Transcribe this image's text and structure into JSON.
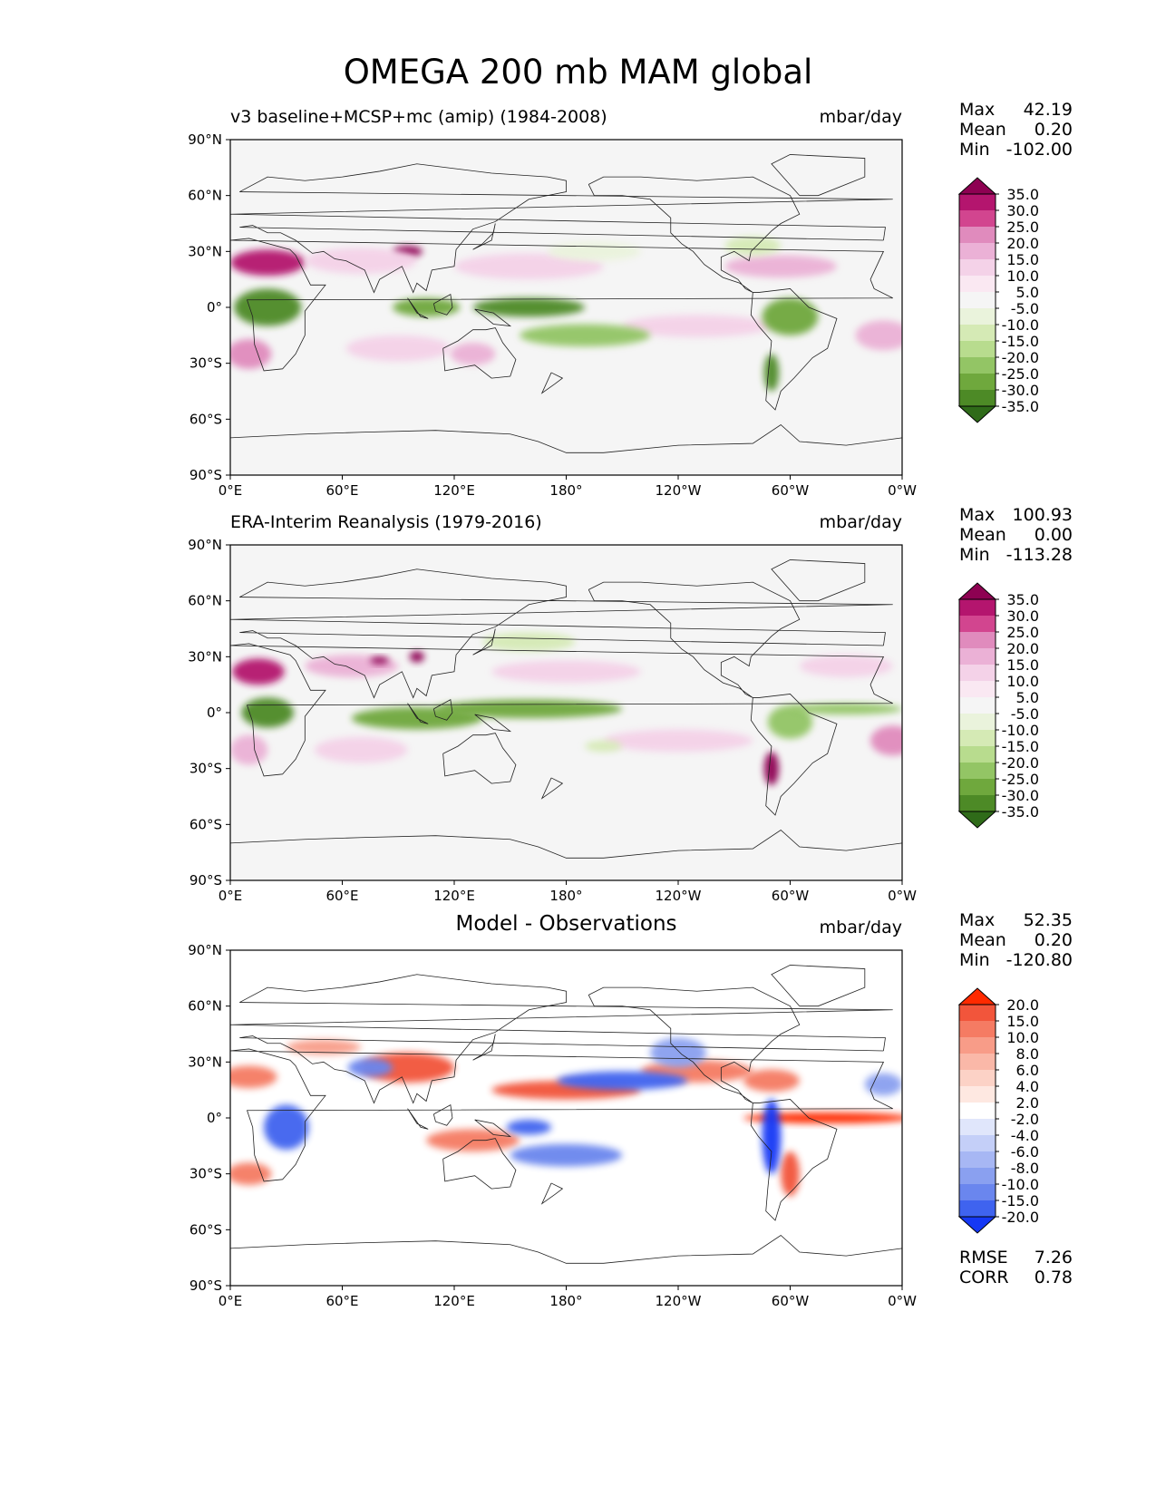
{
  "title": "OMEGA 200 mb MAM global",
  "chart_data": [
    {
      "type": "contour_map",
      "panel_title": "v3 baseline+MCSP+mc (amip) (1984-2008)",
      "units": "mbar/day",
      "stats": {
        "max_label": "Max",
        "max": "42.19",
        "mean_label": "Mean",
        "mean": "0.20",
        "min_label": "Min",
        "min": "-102.00"
      },
      "colorbar": {
        "ticks": [
          "35.0",
          "30.0",
          "25.0",
          "20.0",
          "15.0",
          "10.0",
          "5.0",
          "-5.0",
          "-10.0",
          "-15.0",
          "-20.0",
          "-25.0",
          "-30.0",
          "-35.0"
        ],
        "colors": [
          "#8e0152",
          "#b4156e",
          "#d2458f",
          "#e08bbd",
          "#ebb1d6",
          "#f4d2e8",
          "#fae8f2",
          "#f5f5f5",
          "#eaf3dc",
          "#d5eab5",
          "#b8dc8e",
          "#93c565",
          "#6fa83d",
          "#4d8a26",
          "#2f6b19"
        ]
      },
      "x_ticks": [
        "0°E",
        "60°E",
        "120°E",
        "180°",
        "120°W",
        "60°W",
        "0°W"
      ],
      "y_ticks": [
        "90°N",
        "60°N",
        "30°N",
        "0°",
        "30°S",
        "60°S",
        "90°S"
      ],
      "xlim": [
        0,
        360
      ],
      "ylim": [
        -90,
        90
      ],
      "features": [
        {
          "lon": 20,
          "lat": 24,
          "rx": 20,
          "ry": 7,
          "value": 32
        },
        {
          "lon": 95,
          "lat": 30,
          "rx": 8,
          "ry": 3,
          "value": 38
        },
        {
          "lon": 70,
          "lat": 25,
          "rx": 30,
          "ry": 7,
          "value": 12
        },
        {
          "lon": 160,
          "lat": 22,
          "rx": 40,
          "ry": 7,
          "value": 14
        },
        {
          "lon": 295,
          "lat": 22,
          "rx": 30,
          "ry": 6,
          "value": 18
        },
        {
          "lon": 10,
          "lat": -25,
          "rx": 12,
          "ry": 8,
          "value": 20
        },
        {
          "lon": 90,
          "lat": -22,
          "rx": 28,
          "ry": 7,
          "value": 12
        },
        {
          "lon": 130,
          "lat": -25,
          "rx": 12,
          "ry": 6,
          "value": 16
        },
        {
          "lon": 250,
          "lat": -10,
          "rx": 40,
          "ry": 6,
          "value": 14
        },
        {
          "lon": 350,
          "lat": -15,
          "rx": 15,
          "ry": 8,
          "value": 18
        },
        {
          "lon": 20,
          "lat": 0,
          "rx": 18,
          "ry": 10,
          "value": -34
        },
        {
          "lon": 105,
          "lat": 0,
          "rx": 18,
          "ry": 5,
          "value": -30
        },
        {
          "lon": 160,
          "lat": 0,
          "rx": 30,
          "ry": 5,
          "value": -33
        },
        {
          "lon": 190,
          "lat": -15,
          "rx": 35,
          "ry": 6,
          "value": -25
        },
        {
          "lon": 300,
          "lat": -5,
          "rx": 15,
          "ry": 10,
          "value": -30
        },
        {
          "lon": 290,
          "lat": -35,
          "rx": 4,
          "ry": 10,
          "value": -32
        },
        {
          "lon": 195,
          "lat": 30,
          "rx": 25,
          "ry": 5,
          "value": -10
        },
        {
          "lon": 280,
          "lat": 33,
          "rx": 15,
          "ry": 5,
          "value": -12
        }
      ]
    },
    {
      "type": "contour_map",
      "panel_title": "ERA-Interim Reanalysis (1979-2016)",
      "units": "mbar/day",
      "stats": {
        "max_label": "Max",
        "max": "100.93",
        "mean_label": "Mean",
        "mean": "0.00",
        "min_label": "Min",
        "min": "-113.28"
      },
      "colorbar": {
        "ticks": [
          "35.0",
          "30.0",
          "25.0",
          "20.0",
          "15.0",
          "10.0",
          "5.0",
          "-5.0",
          "-10.0",
          "-15.0",
          "-20.0",
          "-25.0",
          "-30.0",
          "-35.0"
        ],
        "colors": [
          "#8e0152",
          "#b4156e",
          "#d2458f",
          "#e08bbd",
          "#ebb1d6",
          "#f4d2e8",
          "#fae8f2",
          "#f5f5f5",
          "#eaf3dc",
          "#d5eab5",
          "#b8dc8e",
          "#93c565",
          "#6fa83d",
          "#4d8a26",
          "#2f6b19"
        ]
      },
      "x_ticks": [
        "0°E",
        "60°E",
        "120°E",
        "180°",
        "120°W",
        "60°W",
        "0°W"
      ],
      "y_ticks": [
        "90°N",
        "60°N",
        "30°N",
        "0°",
        "30°S",
        "60°S",
        "90°S"
      ],
      "xlim": [
        0,
        360
      ],
      "ylim": [
        -90,
        90
      ],
      "features": [
        {
          "lon": 15,
          "lat": 22,
          "rx": 14,
          "ry": 7,
          "value": 30
        },
        {
          "lon": 65,
          "lat": 25,
          "rx": 25,
          "ry": 6,
          "value": 15
        },
        {
          "lon": 80,
          "lat": 28,
          "rx": 5,
          "ry": 2,
          "value": 38
        },
        {
          "lon": 100,
          "lat": 30,
          "rx": 4,
          "ry": 3,
          "value": 38
        },
        {
          "lon": 180,
          "lat": 22,
          "rx": 40,
          "ry": 6,
          "value": 12
        },
        {
          "lon": 330,
          "lat": 25,
          "rx": 25,
          "ry": 6,
          "value": 12
        },
        {
          "lon": 10,
          "lat": -20,
          "rx": 10,
          "ry": 8,
          "value": 15
        },
        {
          "lon": 70,
          "lat": -20,
          "rx": 25,
          "ry": 7,
          "value": 10
        },
        {
          "lon": 240,
          "lat": -15,
          "rx": 40,
          "ry": 6,
          "value": 12
        },
        {
          "lon": 355,
          "lat": -15,
          "rx": 12,
          "ry": 8,
          "value": 20
        },
        {
          "lon": 290,
          "lat": -30,
          "rx": 4,
          "ry": 9,
          "value": 36
        },
        {
          "lon": 20,
          "lat": 0,
          "rx": 14,
          "ry": 8,
          "value": -34
        },
        {
          "lon": 100,
          "lat": -3,
          "rx": 35,
          "ry": 6,
          "value": -28
        },
        {
          "lon": 160,
          "lat": 2,
          "rx": 50,
          "ry": 5,
          "value": -30
        },
        {
          "lon": 300,
          "lat": -5,
          "rx": 12,
          "ry": 9,
          "value": -22
        },
        {
          "lon": 330,
          "lat": 2,
          "rx": 30,
          "ry": 3,
          "value": -25
        },
        {
          "lon": 160,
          "lat": 38,
          "rx": 25,
          "ry": 5,
          "value": -12
        },
        {
          "lon": 200,
          "lat": -18,
          "rx": 10,
          "ry": 3,
          "value": -15
        }
      ]
    },
    {
      "type": "contour_map",
      "panel_title": "Model - Observations",
      "units": "mbar/day",
      "stats": {
        "max_label": "Max",
        "max": "52.35",
        "mean_label": "Mean",
        "mean": "0.20",
        "min_label": "Min",
        "min": "-120.80"
      },
      "error_stats": {
        "rmse_label": "RMSE",
        "rmse": "7.26",
        "corr_label": "CORR",
        "corr": "0.78"
      },
      "colorbar": {
        "ticks": [
          "20.0",
          "15.0",
          "10.0",
          "8.0",
          "6.0",
          "4.0",
          "2.0",
          "-2.0",
          "-4.0",
          "-6.0",
          "-8.0",
          "-10.0",
          "-15.0",
          "-20.0"
        ],
        "colors": [
          "#ff2a00",
          "#f2553b",
          "#f57b63",
          "#f89c88",
          "#fab8a8",
          "#fcd2c6",
          "#fee8e1",
          "#ffffff",
          "#e0e6fb",
          "#c4cff8",
          "#a7b7f4",
          "#8aa0f0",
          "#6a86ee",
          "#3f63ef",
          "#1538f5"
        ]
      },
      "x_ticks": [
        "0°E",
        "60°E",
        "120°E",
        "180°",
        "120°W",
        "60°W",
        "0°W"
      ],
      "y_ticks": [
        "90°N",
        "60°N",
        "30°N",
        "0°",
        "30°S",
        "60°S",
        "90°S"
      ],
      "xlim": [
        0,
        360
      ],
      "ylim": [
        -90,
        90
      ],
      "features": [
        {
          "lon": 10,
          "lat": 22,
          "rx": 15,
          "ry": 6,
          "value": 14
        },
        {
          "lon": 95,
          "lat": 27,
          "rx": 25,
          "ry": 8,
          "value": 18
        },
        {
          "lon": 180,
          "lat": 15,
          "rx": 40,
          "ry": 5,
          "value": 16
        },
        {
          "lon": 320,
          "lat": 0,
          "rx": 45,
          "ry": 3,
          "value": 20
        },
        {
          "lon": 300,
          "lat": -30,
          "rx": 5,
          "ry": 12,
          "value": 18
        },
        {
          "lon": 130,
          "lat": -12,
          "rx": 25,
          "ry": 6,
          "value": 12
        },
        {
          "lon": 10,
          "lat": -30,
          "rx": 12,
          "ry": 6,
          "value": 12
        },
        {
          "lon": 250,
          "lat": 25,
          "rx": 30,
          "ry": 6,
          "value": 10
        },
        {
          "lon": 290,
          "lat": 20,
          "rx": 15,
          "ry": 6,
          "value": 12
        },
        {
          "lon": 30,
          "lat": -5,
          "rx": 12,
          "ry": 12,
          "value": -18
        },
        {
          "lon": 75,
          "lat": 27,
          "rx": 12,
          "ry": 5,
          "value": -12
        },
        {
          "lon": 210,
          "lat": 20,
          "rx": 35,
          "ry": 5,
          "value": -20
        },
        {
          "lon": 180,
          "lat": -20,
          "rx": 30,
          "ry": 6,
          "value": -14
        },
        {
          "lon": 160,
          "lat": -5,
          "rx": 12,
          "ry": 4,
          "value": -18
        },
        {
          "lon": 290,
          "lat": -10,
          "rx": 5,
          "ry": 20,
          "value": -22
        },
        {
          "lon": 350,
          "lat": 18,
          "rx": 10,
          "ry": 6,
          "value": -10
        },
        {
          "lon": 240,
          "lat": 35,
          "rx": 15,
          "ry": 8,
          "value": -10
        },
        {
          "lon": 50,
          "lat": 38,
          "rx": 20,
          "ry": 4,
          "value": 8
        }
      ]
    }
  ]
}
